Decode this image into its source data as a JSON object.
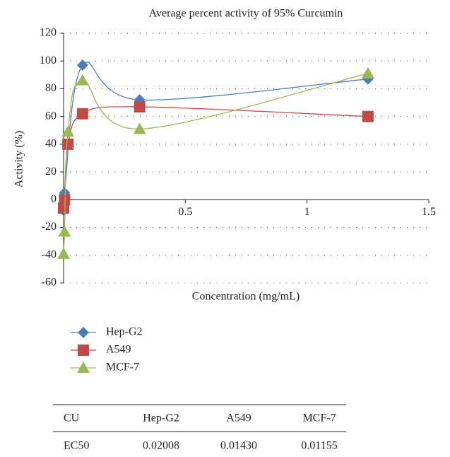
{
  "chart_data": {
    "type": "line",
    "title": "Average percent activity of 95% Curcumin",
    "x_label": "Concentration (mg/mL)",
    "y_label": "Activity (%)",
    "xlim": [
      0,
      1.5
    ],
    "xticks": [
      0,
      0.5,
      1,
      1.5
    ],
    "ylim": [
      -60,
      120
    ],
    "yticks": [
      -60,
      -40,
      -20,
      0,
      20,
      40,
      60,
      80,
      100,
      120
    ],
    "grid": true,
    "legend": "bottom-left",
    "series": [
      {
        "name": "Hep-G2",
        "color": "#4a7ebb",
        "marker": "diamond",
        "x": [
          0.004,
          0.078,
          0.3125,
          1.25
        ],
        "values": [
          5,
          97,
          72,
          87
        ]
      },
      {
        "name": "A549",
        "color": "#be4b48",
        "marker": "square",
        "x": [
          0,
          0.004,
          0.018,
          0.078,
          0.3125,
          1.25
        ],
        "values": [
          -6,
          0,
          40,
          62,
          67,
          60
        ]
      },
      {
        "name": "MCF-7",
        "color": "#98b954",
        "marker": "triangle",
        "x": [
          0,
          0.004,
          0.018,
          0.078,
          0.3125,
          1.25
        ],
        "values": [
          -39,
          -23,
          49,
          86,
          51,
          91
        ]
      }
    ]
  },
  "table": {
    "header": [
      "CU",
      "Hep-G2",
      "A549",
      "MCF-7"
    ],
    "rows": [
      [
        "EC50",
        "0.02008",
        "0.01430",
        "0.01155"
      ]
    ]
  }
}
